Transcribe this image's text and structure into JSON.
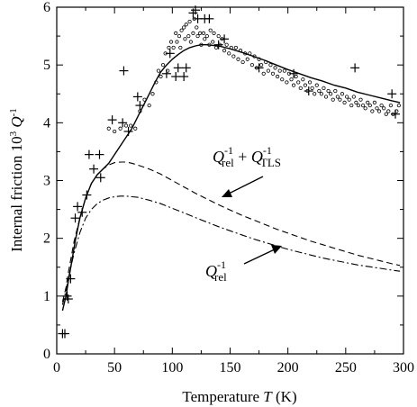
{
  "chart_data": {
    "type": "scatter",
    "xlabel": "Temperature T (K)",
    "ylabel": "Internal friction 10^3 Q^-1",
    "xlim": [
      0,
      300
    ],
    "ylim": [
      0,
      6
    ],
    "x_ticks": [
      0,
      50,
      100,
      150,
      200,
      250,
      300
    ],
    "y_ticks": [
      0,
      1,
      2,
      3,
      4,
      5,
      6
    ],
    "grid": false,
    "labels": {
      "tick_x": [
        "0",
        "50",
        "100",
        "150",
        "200",
        "250",
        "300"
      ],
      "tick_y": [
        "0",
        "1",
        "2",
        "3",
        "4",
        "5",
        "6"
      ],
      "xlabel_main": "Temperature ",
      "xlabel_var": "T",
      "xlabel_unit": " (K)",
      "ylabel_main": "Internal friction",
      "ylabel_pow": "10",
      "ylabel_pow_exp": "3",
      "ylabel_var": "Q",
      "ylabel_exp": "-1",
      "ann1_q1": "Q",
      "ann1_exp1": "-1",
      "ann1_sub1": "rel",
      "ann1_plus": " + ",
      "ann1_q2": "Q",
      "ann1_exp2": "-1",
      "ann1_sub2": "TLS",
      "ann2_q": "Q",
      "ann2_exp": "-1",
      "ann2_sub": "rel"
    },
    "series": [
      {
        "marker": "plus",
        "points": [
          [
            5,
            0.35
          ],
          [
            7,
            0.35
          ],
          [
            9,
            1.0
          ],
          [
            10,
            0.95
          ],
          [
            12,
            1.3
          ],
          [
            16,
            2.35
          ],
          [
            18,
            2.55
          ],
          [
            22,
            2.45
          ],
          [
            26,
            2.75
          ],
          [
            28,
            3.45
          ],
          [
            32,
            3.2
          ],
          [
            37,
            3.45
          ],
          [
            38,
            3.05
          ],
          [
            48,
            4.05
          ],
          [
            57,
            4.0
          ],
          [
            58,
            4.9
          ],
          [
            62,
            3.85
          ],
          [
            70,
            4.45
          ],
          [
            72,
            4.3
          ],
          [
            95,
            4.85
          ],
          [
            98,
            5.2
          ],
          [
            103,
            4.8
          ],
          [
            105,
            4.95
          ],
          [
            110,
            4.8
          ],
          [
            112,
            4.95
          ],
          [
            118,
            5.9
          ],
          [
            120,
            5.95
          ],
          [
            122,
            5.8
          ],
          [
            128,
            5.8
          ],
          [
            132,
            5.8
          ],
          [
            140,
            5.35
          ],
          [
            145,
            5.45
          ],
          [
            175,
            4.95
          ],
          [
            205,
            4.85
          ],
          [
            258,
            4.95
          ],
          [
            218,
            4.55
          ],
          [
            290,
            4.5
          ],
          [
            293,
            4.15
          ]
        ]
      },
      {
        "marker": "circle",
        "points": [
          [
            45,
            3.9
          ],
          [
            50,
            3.85
          ],
          [
            55,
            3.9
          ],
          [
            60,
            3.95
          ],
          [
            64,
            3.95
          ],
          [
            68,
            3.9
          ],
          [
            72,
            4.2
          ],
          [
            76,
            4.4
          ],
          [
            80,
            4.3
          ],
          [
            83,
            4.5
          ],
          [
            86,
            4.7
          ],
          [
            88,
            4.9
          ],
          [
            90,
            4.8
          ],
          [
            92,
            5.0
          ],
          [
            94,
            5.2
          ],
          [
            96,
            4.9
          ],
          [
            97,
            5.3
          ],
          [
            99,
            5.4
          ],
          [
            101,
            5.3
          ],
          [
            103,
            5.55
          ],
          [
            104,
            5.4
          ],
          [
            106,
            5.5
          ],
          [
            107,
            5.3
          ],
          [
            108,
            5.6
          ],
          [
            110,
            5.65
          ],
          [
            111,
            5.45
          ],
          [
            112,
            5.7
          ],
          [
            114,
            5.5
          ],
          [
            115,
            5.75
          ],
          [
            116,
            5.4
          ],
          [
            118,
            5.55
          ],
          [
            119,
            5.8
          ],
          [
            121,
            5.65
          ],
          [
            122,
            5.5
          ],
          [
            124,
            5.55
          ],
          [
            125,
            5.35
          ],
          [
            127,
            5.55
          ],
          [
            128,
            5.45
          ],
          [
            130,
            5.5
          ],
          [
            132,
            5.35
          ],
          [
            133,
            5.6
          ],
          [
            135,
            5.4
          ],
          [
            136,
            5.55
          ],
          [
            138,
            5.3
          ],
          [
            140,
            5.5
          ],
          [
            141,
            5.35
          ],
          [
            143,
            5.45
          ],
          [
            145,
            5.25
          ],
          [
            147,
            5.35
          ],
          [
            149,
            5.2
          ],
          [
            151,
            5.3
          ],
          [
            153,
            5.15
          ],
          [
            155,
            5.3
          ],
          [
            157,
            5.1
          ],
          [
            159,
            5.25
          ],
          [
            161,
            5.05
          ],
          [
            163,
            5.2
          ],
          [
            165,
            5.1
          ],
          [
            167,
            5.2
          ],
          [
            169,
            5.0
          ],
          [
            171,
            5.15
          ],
          [
            173,
            4.95
          ],
          [
            175,
            5.1
          ],
          [
            177,
            5.0
          ],
          [
            179,
            4.85
          ],
          [
            181,
            5.05
          ],
          [
            183,
            4.9
          ],
          [
            185,
            5.0
          ],
          [
            187,
            4.85
          ],
          [
            189,
            4.95
          ],
          [
            191,
            4.8
          ],
          [
            193,
            4.9
          ],
          [
            195,
            4.75
          ],
          [
            197,
            4.9
          ],
          [
            199,
            4.7
          ],
          [
            201,
            4.85
          ],
          [
            203,
            4.75
          ],
          [
            205,
            4.65
          ],
          [
            207,
            4.8
          ],
          [
            209,
            4.7
          ],
          [
            211,
            4.6
          ],
          [
            213,
            4.75
          ],
          [
            215,
            4.65
          ],
          [
            217,
            4.55
          ],
          [
            219,
            4.7
          ],
          [
            221,
            4.6
          ],
          [
            223,
            4.5
          ],
          [
            225,
            4.65
          ],
          [
            227,
            4.55
          ],
          [
            229,
            4.5
          ],
          [
            231,
            4.6
          ],
          [
            233,
            4.45
          ],
          [
            235,
            4.55
          ],
          [
            237,
            4.5
          ],
          [
            239,
            4.4
          ],
          [
            241,
            4.55
          ],
          [
            243,
            4.45
          ],
          [
            245,
            4.4
          ],
          [
            247,
            4.5
          ],
          [
            249,
            4.35
          ],
          [
            251,
            4.45
          ],
          [
            253,
            4.4
          ],
          [
            255,
            4.3
          ],
          [
            257,
            4.45
          ],
          [
            259,
            4.35
          ],
          [
            261,
            4.3
          ],
          [
            263,
            4.4
          ],
          [
            265,
            4.3
          ],
          [
            267,
            4.25
          ],
          [
            269,
            4.35
          ],
          [
            271,
            4.3
          ],
          [
            273,
            4.2
          ],
          [
            275,
            4.35
          ],
          [
            277,
            4.25
          ],
          [
            279,
            4.2
          ],
          [
            281,
            4.3
          ],
          [
            283,
            4.25
          ],
          [
            285,
            4.15
          ],
          [
            287,
            4.2
          ],
          [
            289,
            4.3
          ],
          [
            291,
            4.15
          ],
          [
            294,
            4.2
          ],
          [
            296,
            4.3
          ]
        ]
      },
      {
        "style": "solid",
        "points": [
          [
            5,
            0.75
          ],
          [
            8,
            1.0
          ],
          [
            10,
            1.25
          ],
          [
            13,
            1.6
          ],
          [
            16,
            1.95
          ],
          [
            20,
            2.35
          ],
          [
            25,
            2.7
          ],
          [
            30,
            2.95
          ],
          [
            35,
            3.1
          ],
          [
            40,
            3.2
          ],
          [
            45,
            3.3
          ],
          [
            50,
            3.45
          ],
          [
            55,
            3.6
          ],
          [
            60,
            3.75
          ],
          [
            65,
            3.9
          ],
          [
            70,
            4.1
          ],
          [
            75,
            4.3
          ],
          [
            80,
            4.5
          ],
          [
            85,
            4.7
          ],
          [
            90,
            4.88
          ],
          [
            95,
            5.0
          ],
          [
            100,
            5.1
          ],
          [
            105,
            5.18
          ],
          [
            110,
            5.25
          ],
          [
            115,
            5.3
          ],
          [
            120,
            5.33
          ],
          [
            125,
            5.35
          ],
          [
            130,
            5.35
          ],
          [
            135,
            5.34
          ],
          [
            140,
            5.33
          ],
          [
            150,
            5.28
          ],
          [
            160,
            5.22
          ],
          [
            170,
            5.15
          ],
          [
            180,
            5.08
          ],
          [
            190,
            5.0
          ],
          [
            200,
            4.92
          ],
          [
            210,
            4.85
          ],
          [
            220,
            4.78
          ],
          [
            230,
            4.72
          ],
          [
            240,
            4.65
          ],
          [
            250,
            4.6
          ],
          [
            260,
            4.53
          ],
          [
            270,
            4.48
          ],
          [
            280,
            4.43
          ],
          [
            290,
            4.38
          ],
          [
            297,
            4.35
          ]
        ]
      },
      {
        "style": "dashed",
        "points": [
          [
            5,
            0.9
          ],
          [
            8,
            1.15
          ],
          [
            10,
            1.4
          ],
          [
            15,
            1.95
          ],
          [
            20,
            2.35
          ],
          [
            25,
            2.7
          ],
          [
            30,
            2.95
          ],
          [
            35,
            3.1
          ],
          [
            40,
            3.2
          ],
          [
            45,
            3.27
          ],
          [
            50,
            3.31
          ],
          [
            55,
            3.32
          ],
          [
            60,
            3.32
          ],
          [
            65,
            3.3
          ],
          [
            70,
            3.27
          ],
          [
            80,
            3.2
          ],
          [
            90,
            3.11
          ],
          [
            100,
            3.0
          ],
          [
            110,
            2.89
          ],
          [
            120,
            2.78
          ],
          [
            130,
            2.68
          ],
          [
            140,
            2.58
          ],
          [
            150,
            2.49
          ],
          [
            160,
            2.4
          ],
          [
            170,
            2.32
          ],
          [
            180,
            2.24
          ],
          [
            190,
            2.16
          ],
          [
            200,
            2.09
          ],
          [
            210,
            2.02
          ],
          [
            220,
            1.95
          ],
          [
            230,
            1.89
          ],
          [
            240,
            1.83
          ],
          [
            250,
            1.77
          ],
          [
            260,
            1.71
          ],
          [
            270,
            1.66
          ],
          [
            280,
            1.61
          ],
          [
            290,
            1.56
          ],
          [
            297,
            1.53
          ]
        ]
      },
      {
        "style": "dashdot",
        "points": [
          [
            5,
            0.85
          ],
          [
            8,
            1.1
          ],
          [
            10,
            1.3
          ],
          [
            15,
            1.75
          ],
          [
            20,
            2.1
          ],
          [
            25,
            2.35
          ],
          [
            30,
            2.5
          ],
          [
            35,
            2.6
          ],
          [
            40,
            2.66
          ],
          [
            45,
            2.7
          ],
          [
            50,
            2.72
          ],
          [
            55,
            2.73
          ],
          [
            60,
            2.73
          ],
          [
            65,
            2.72
          ],
          [
            70,
            2.71
          ],
          [
            80,
            2.66
          ],
          [
            90,
            2.6
          ],
          [
            100,
            2.52
          ],
          [
            110,
            2.44
          ],
          [
            120,
            2.36
          ],
          [
            130,
            2.28
          ],
          [
            140,
            2.2
          ],
          [
            150,
            2.13
          ],
          [
            160,
            2.06
          ],
          [
            170,
            1.99
          ],
          [
            180,
            1.93
          ],
          [
            190,
            1.87
          ],
          [
            200,
            1.81
          ],
          [
            210,
            1.76
          ],
          [
            220,
            1.71
          ],
          [
            230,
            1.66
          ],
          [
            240,
            1.62
          ],
          [
            250,
            1.58
          ],
          [
            260,
            1.54
          ],
          [
            270,
            1.51
          ],
          [
            280,
            1.48
          ],
          [
            290,
            1.45
          ],
          [
            297,
            1.43
          ]
        ]
      }
    ]
  }
}
